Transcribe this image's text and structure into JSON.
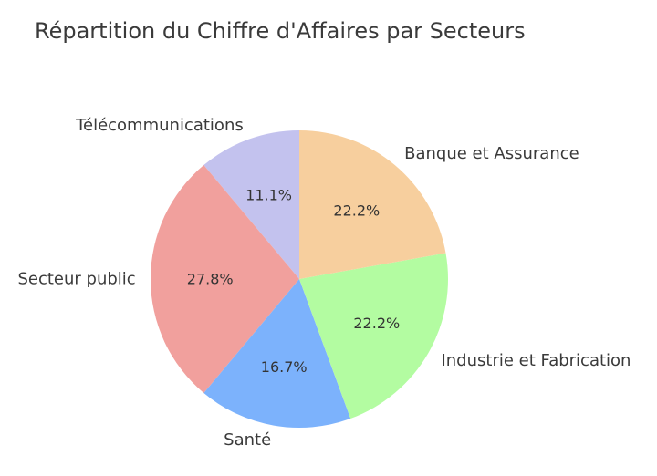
{
  "chart_data": {
    "type": "pie",
    "title": "Répartition du Chiffre d'Affaires par Secteurs",
    "start_angle_deg": 90,
    "direction": "counterclockwise",
    "slices": [
      {
        "label": "Télécommunications",
        "value": 11.1,
        "pct_label": "11.1%",
        "color": "#c3c2ee"
      },
      {
        "label": "Secteur public",
        "value": 27.8,
        "pct_label": "27.8%",
        "color": "#f1a09d"
      },
      {
        "label": "Santé",
        "value": 16.7,
        "pct_label": "16.7%",
        "color": "#7cb2fc"
      },
      {
        "label": "Industrie et Fabrication",
        "value": 22.2,
        "pct_label": "22.2%",
        "color": "#b3fca1"
      },
      {
        "label": "Banque et Assurance",
        "value": 22.2,
        "pct_label": "22.2%",
        "color": "#f7cf9e"
      }
    ]
  }
}
